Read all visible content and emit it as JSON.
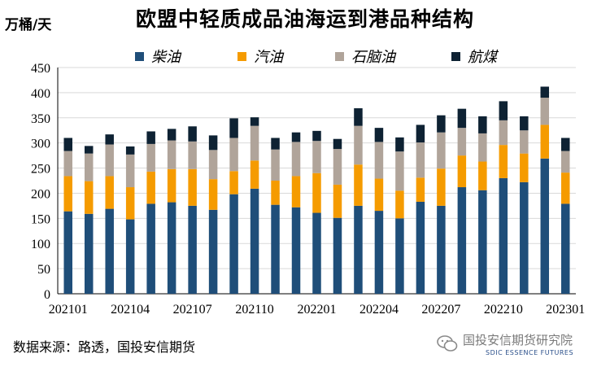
{
  "chart_data": {
    "type": "bar",
    "stacked": true,
    "title": "欧盟中轻质成品油海运到港品种结构",
    "ylabel": "万桶/天",
    "ylim": [
      0,
      450
    ],
    "yticks": [
      0,
      50,
      100,
      150,
      200,
      250,
      300,
      350,
      400,
      450
    ],
    "categories": [
      "202101",
      "202102",
      "202103",
      "202104",
      "202105",
      "202106",
      "202107",
      "202108",
      "202109",
      "202110",
      "202111",
      "202112",
      "202201",
      "202202",
      "202203",
      "202204",
      "202205",
      "202206",
      "202207",
      "202208",
      "202209",
      "202210",
      "202211",
      "202212",
      "202301"
    ],
    "xtick_labels": [
      "202101",
      "202104",
      "202107",
      "202110",
      "202201",
      "202204",
      "202207",
      "202210",
      "202301"
    ],
    "series": [
      {
        "name": "柴油",
        "color": "#1f4e79",
        "values": [
          164,
          159,
          169,
          148,
          179,
          182,
          175,
          167,
          198,
          209,
          177,
          172,
          161,
          151,
          175,
          165,
          150,
          183,
          175,
          212,
          206,
          230,
          222,
          269,
          179
        ]
      },
      {
        "name": "汽油",
        "color": "#f59b00",
        "values": [
          70,
          65,
          65,
          64,
          64,
          66,
          73,
          61,
          46,
          56,
          48,
          62,
          79,
          66,
          82,
          64,
          55,
          48,
          74,
          63,
          57,
          66,
          57,
          67,
          62
        ]
      },
      {
        "name": "石脑油",
        "color": "#b0a49a",
        "values": [
          50,
          55,
          63,
          65,
          55,
          57,
          55,
          58,
          66,
          69,
          62,
          68,
          64,
          71,
          77,
          73,
          78,
          70,
          72,
          55,
          56,
          49,
          46,
          54,
          43
        ]
      },
      {
        "name": "航煤",
        "color": "#0e2233",
        "values": [
          26,
          15,
          20,
          16,
          25,
          23,
          30,
          29,
          39,
          17,
          23,
          19,
          20,
          20,
          35,
          28,
          28,
          35,
          34,
          38,
          34,
          38,
          28,
          22,
          26
        ]
      }
    ],
    "legend_position": "top"
  },
  "source": "数据来源：路透，国投安信期货",
  "watermark": {
    "text": "国投安信期货研究院",
    "subtext": "SDIC ESSENCE FUTURES"
  }
}
